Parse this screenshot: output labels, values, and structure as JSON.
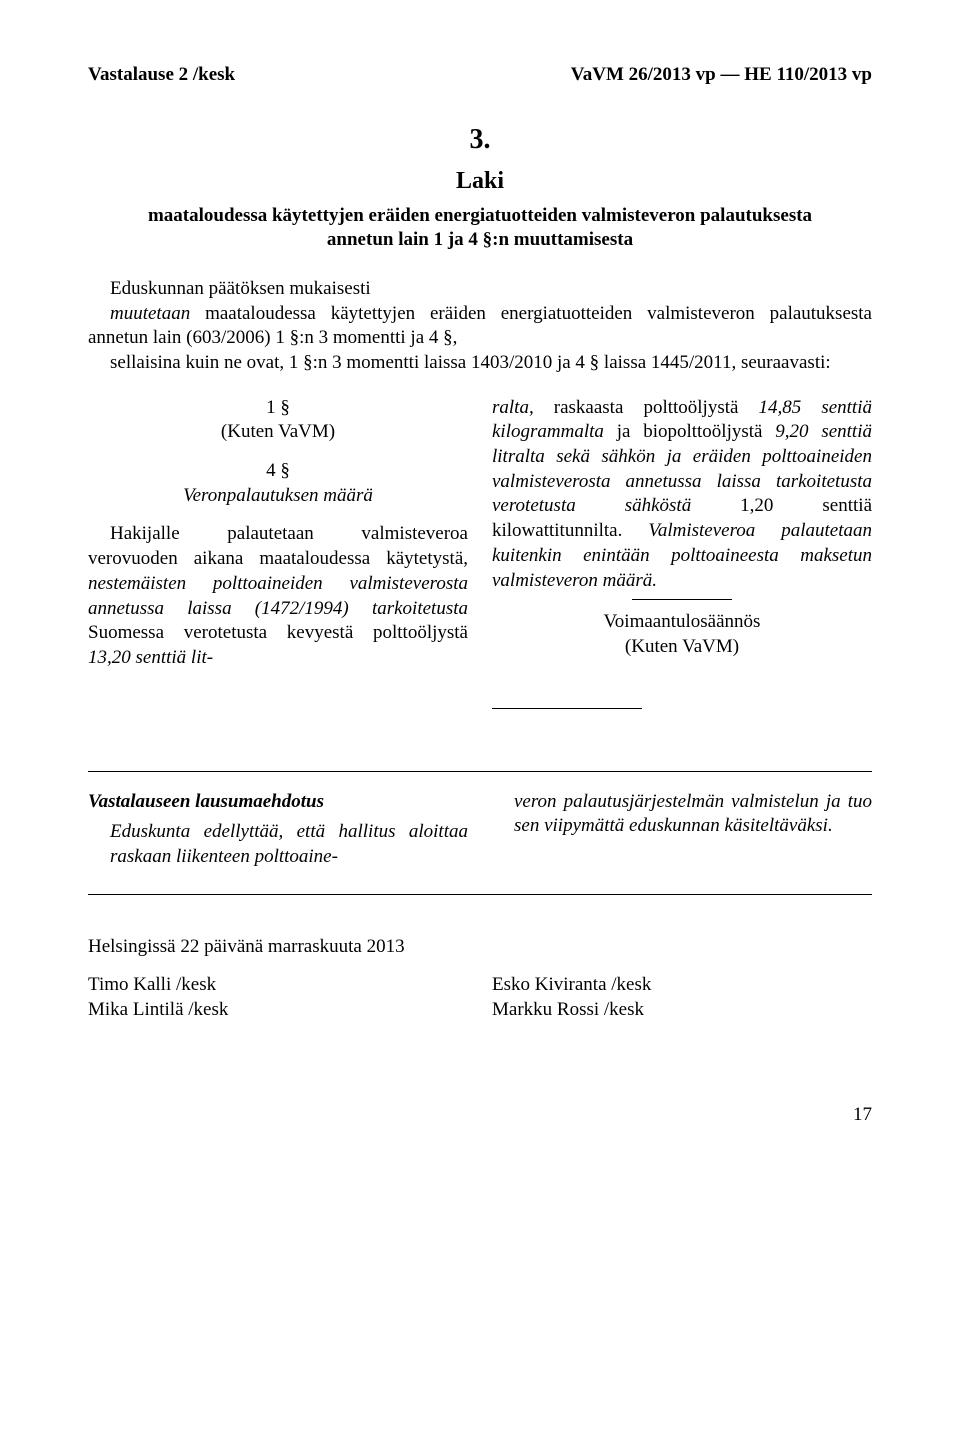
{
  "header": {
    "left": "Vastalause 2 /kesk",
    "right": "VaVM 26/2013 vp — HE 110/2013 vp"
  },
  "law": {
    "number": "3.",
    "label": "Laki",
    "title": "maataloudessa käytettyjen eräiden energiatuotteiden valmisteveron palautuksesta annetun lain 1 ja 4 §:n muuttamisesta"
  },
  "intro": {
    "line1": "Eduskunnan päätöksen mukaisesti",
    "line2_prefix": "muutetaan",
    "line2_rest": " maataloudessa käytettyjen eräiden energiatuotteiden valmisteveron palautuksesta annetun lain (603/2006) 1 §:n 3 momentti ja 4 §,",
    "line3": "sellaisina kuin ne ovat, 1 §:n 3 momentti laissa 1403/2010 ja 4 § laissa 1445/2011, seuraavasti:"
  },
  "left_col": {
    "sec1_num": "1 §",
    "sec1_sub": "(Kuten VaVM)",
    "sec4_num": "4 §",
    "sec4_sub": "Veronpalautuksen määrä",
    "sec4_body_html": "Hakijalle palautetaan valmisteveroa verovuoden aikana maataloudessa käytetystä, <i>nestemäisten polttoaineiden valmisteverosta annetussa laissa (1472/1994) tarkoitetusta</i> Suomessa verotetusta kevyestä polttoöljystä <i>13,20 senttiä lit-</i>"
  },
  "right_col": {
    "cont_body_html": "<i>ralta,</i> raskaasta polttoöljystä <i>14,85 senttiä kilogrammalta</i> ja biopolttoöljystä <i>9,20 senttiä litralta sekä sähkön ja eräiden polttoaineiden valmisteverosta annetussa laissa tarkoitetusta verotetusta sähköstä</i> 1,20 senttiä kilowattitunnilta. <i>Valmisteveroa palautetaan kuitenkin enintään polttoaineesta maksetun valmisteveron määrä.</i>",
    "voimaantulo_title": "Voimaantulosäännös",
    "voimaantulo_sub": "(Kuten VaVM)"
  },
  "proposal": {
    "heading": "Vastalauseen lausumaehdotus",
    "left_html": "<i>Eduskunta edellyttää, että hallitus aloittaa raskaan liikenteen polttoaine-</i>",
    "right_html": "<i>veron palautusjärjestelmän valmistelun ja tuo sen viipymättä eduskunnan käsiteltäväksi.</i>"
  },
  "signatures": {
    "place_date": "Helsingissä 22 päivänä marraskuuta 2013",
    "left": [
      "Timo Kalli /kesk",
      "Mika Lintilä /kesk"
    ],
    "right": [
      "Esko Kiviranta /kesk",
      "Markku Rossi /kesk"
    ]
  },
  "page_number": "17"
}
